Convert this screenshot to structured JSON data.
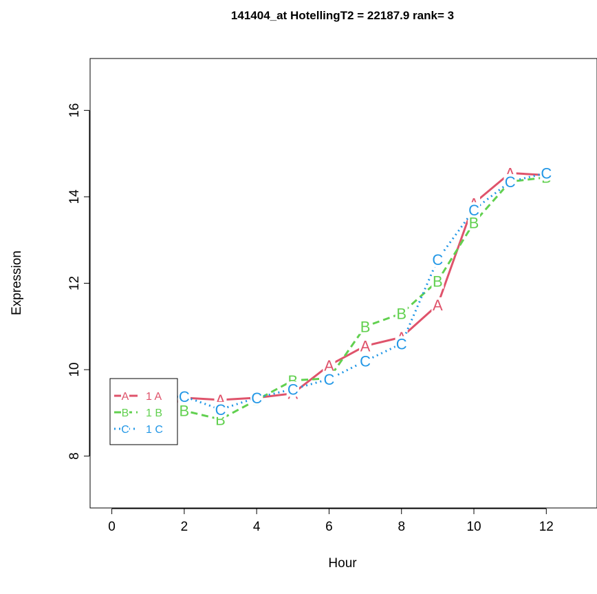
{
  "chart_data": {
    "type": "line",
    "title": "141404_at  HotellingT2 = 22187.9  rank= 3",
    "xlabel": "Hour",
    "ylabel": "Expression",
    "xlim": [
      -0.6,
      13.4
    ],
    "ylim": [
      6.8,
      17.2
    ],
    "x_ticks": [
      0,
      2,
      4,
      6,
      8,
      10,
      12
    ],
    "y_ticks": [
      8,
      10,
      12,
      14,
      16
    ],
    "grid": false,
    "legend_position": "left",
    "series": [
      {
        "name": "1 A",
        "marker": "A",
        "color": "#DF536B",
        "dash": "solid",
        "x": [
          1,
          2,
          3,
          4,
          5,
          6,
          7,
          8,
          9,
          10,
          11,
          12
        ],
        "y": [
          8.85,
          9.35,
          9.3,
          9.35,
          9.45,
          10.1,
          10.55,
          10.75,
          11.5,
          13.85,
          14.55,
          14.5
        ]
      },
      {
        "name": "1 B",
        "marker": "B",
        "color": "#61D04F",
        "dash": "dashed",
        "x": [
          1,
          2,
          3,
          4,
          5,
          6,
          7,
          8,
          9,
          10,
          11,
          12
        ],
        "y": [
          9.25,
          9.05,
          8.85,
          9.3,
          9.75,
          9.8,
          11.0,
          11.3,
          12.05,
          13.4,
          14.35,
          14.45
        ]
      },
      {
        "name": "1 C",
        "marker": "C",
        "color": "#2297E6",
        "dash": "dotted",
        "x": [
          1,
          2,
          3,
          4,
          5,
          6,
          7,
          8,
          9,
          10,
          11,
          12
        ],
        "y": [
          9.35,
          9.38,
          9.08,
          9.35,
          9.55,
          9.78,
          10.2,
          10.6,
          12.55,
          13.7,
          14.35,
          14.55
        ]
      }
    ]
  }
}
